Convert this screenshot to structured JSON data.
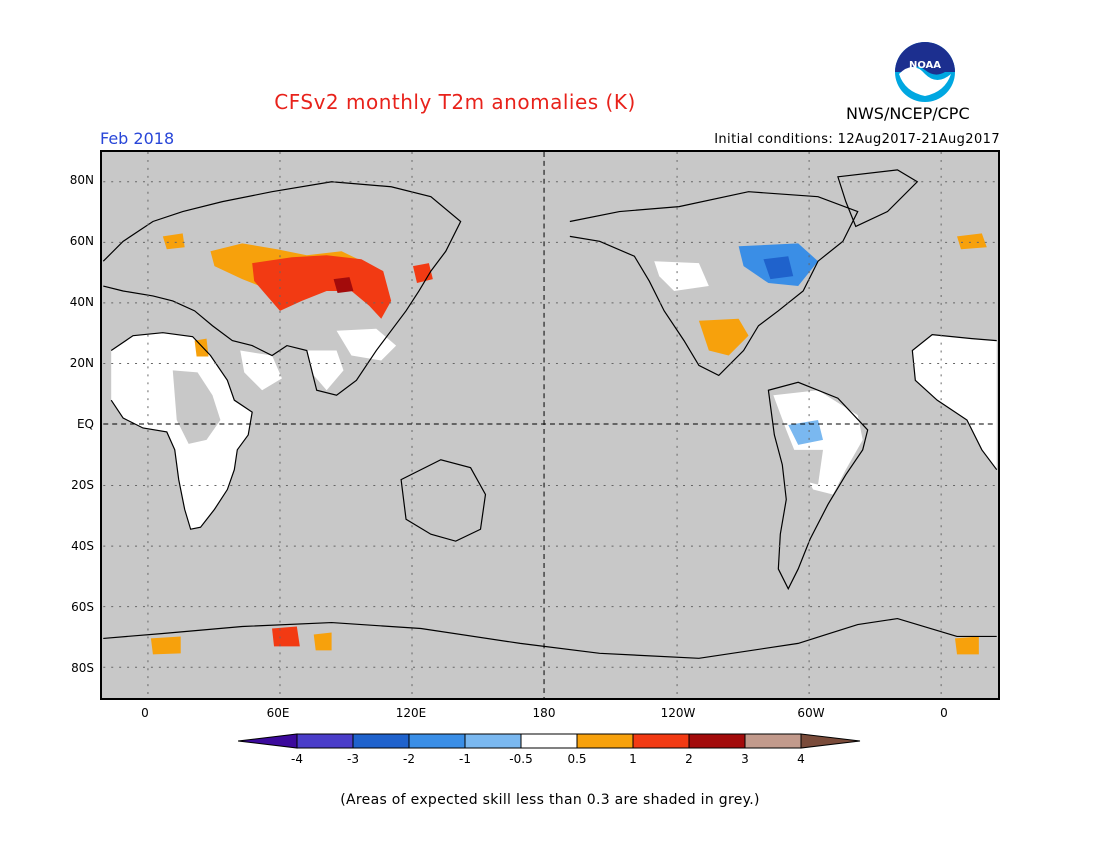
{
  "title": "CFSv2 monthly T2m anomalies (K)",
  "agency": "NWS/NCEP/CPC",
  "logo_text": "NOAA",
  "valid_month": "Feb 2018",
  "initial_conditions": "Initial conditions: 12Aug2017-21Aug2017",
  "lat_labels": [
    "80N",
    "60N",
    "40N",
    "20N",
    "EQ",
    "20S",
    "40S",
    "60S",
    "80S"
  ],
  "lon_labels": [
    "0",
    "60E",
    "120E",
    "180",
    "120W",
    "60W",
    "0"
  ],
  "colorbar": {
    "colors": [
      "#3c0a9c",
      "#4a3dc9",
      "#1f62cc",
      "#3a8ee6",
      "#7ab8f0",
      "#ffffff",
      "#f7a10c",
      "#f23a13",
      "#a30b0b",
      "#c29a8c",
      "#7a4b3a"
    ],
    "labels": [
      "-4",
      "-3",
      "-2",
      "-1",
      "-0.5",
      "0.5",
      "1",
      "2",
      "3",
      "4"
    ]
  },
  "colors": {
    "background": "#c8c8c8",
    "title": "#e8221b",
    "month": "#2846d8",
    "low_skill": "#c8c8c8",
    "neutral": "#ffffff"
  },
  "footnote": "(Areas of expected skill less than 0.3 are shaded in grey.)"
}
